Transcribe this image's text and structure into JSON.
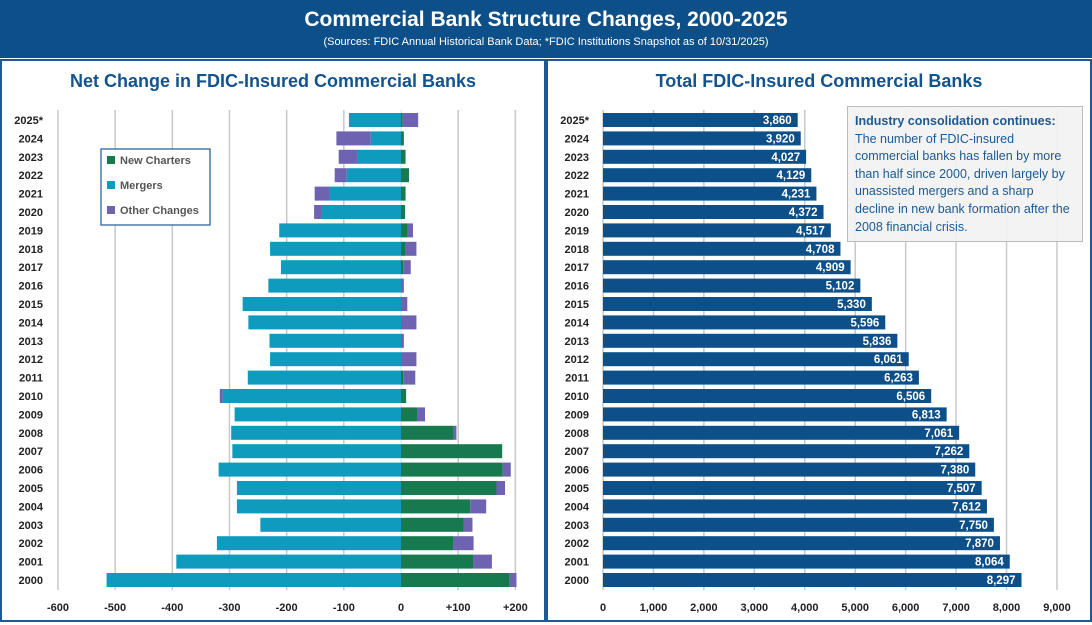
{
  "header": {
    "title": "Commercial Bank Structure Changes, 2000-2025",
    "subtitle": "(Sources: FDIC Annual Historical Bank Data; *FDIC Institutions Snapshot as of 10/31/2025)"
  },
  "annotation": {
    "heading": "Industry consolidation continues:",
    "body": "The number of FDIC-insured commercial banks has fallen by more than half since 2000, driven largely by unassisted mergers and a sharp decline in new bank formation after the 2008 financial crisis."
  },
  "chart_data": [
    {
      "type": "bar",
      "orientation": "horizontal",
      "stacked": true,
      "title": "Net Change in FDIC-Insured Commercial Banks",
      "categories": [
        "2025*",
        "2024",
        "2023",
        "2022",
        "2021",
        "2020",
        "2019",
        "2018",
        "2017",
        "2016",
        "2015",
        "2014",
        "2013",
        "2012",
        "2011",
        "2010",
        "2009",
        "2008",
        "2007",
        "2006",
        "2005",
        "2004",
        "2003",
        "2002",
        "2001",
        "2000"
      ],
      "xlim": [
        -600,
        200
      ],
      "xticks": [
        "-600",
        "-500",
        "-400",
        "-300",
        "-200",
        "-100",
        "0",
        "+100",
        "+200"
      ],
      "grid": true,
      "legend": "upper-left",
      "series": [
        {
          "name": "New Charters",
          "color": "#177a4e",
          "values": [
            3,
            5,
            8,
            14,
            8,
            7,
            12,
            7,
            4,
            0,
            0,
            0,
            0,
            0,
            4,
            9,
            28,
            92,
            177,
            178,
            167,
            121,
            110,
            91,
            126,
            190
          ]
        },
        {
          "name": "Mergers",
          "color": "#0e9bbd",
          "values": [
            -91,
            -53,
            -76,
            -95,
            -125,
            -139,
            -213,
            -229,
            -210,
            -232,
            -277,
            -267,
            -230,
            -229,
            -268,
            -312,
            -291,
            -297,
            -295,
            -319,
            -287,
            -287,
            -246,
            -322,
            -393,
            -515
          ]
        },
        {
          "name": "Other Changes",
          "color": "#6e63b0",
          "values": [
            27,
            -60,
            -33,
            -21,
            -26,
            -13,
            9,
            20,
            13,
            5,
            11,
            27,
            5,
            27,
            21,
            -5,
            14,
            5,
            0,
            14,
            15,
            28,
            15,
            36,
            33,
            12
          ]
        }
      ]
    },
    {
      "type": "bar",
      "orientation": "horizontal",
      "title": "Total FDIC-Insured Commercial Banks",
      "categories": [
        "2025*",
        "2024",
        "2023",
        "2022",
        "2021",
        "2020",
        "2019",
        "2018",
        "2017",
        "2016",
        "2015",
        "2014",
        "2013",
        "2012",
        "2011",
        "2010",
        "2009",
        "2008",
        "2007",
        "2006",
        "2005",
        "2004",
        "2003",
        "2002",
        "2001",
        "2000"
      ],
      "values": [
        3860,
        3920,
        4027,
        4129,
        4231,
        4372,
        4517,
        4708,
        4909,
        5102,
        5330,
        5596,
        5836,
        6061,
        6263,
        6506,
        6813,
        7061,
        7262,
        7380,
        7507,
        7612,
        7750,
        7870,
        8064,
        8297
      ],
      "labels": [
        "3,860",
        "3,920",
        "4,027",
        "4,129",
        "4,231",
        "4,372",
        "4,517",
        "4,708",
        "4,909",
        "5,102",
        "5,330",
        "5,596",
        "5,836",
        "6,061",
        "6,263",
        "6,506",
        "6,813",
        "7,061",
        "7,262",
        "7,380",
        "7,507",
        "7,612",
        "7,750",
        "7,870",
        "8,064",
        "8,297"
      ],
      "xlim": [
        0,
        9000
      ],
      "xticks": [
        "0",
        "1,000",
        "2,000",
        "3,000",
        "4,000",
        "5,000",
        "6,000",
        "7,000",
        "8,000",
        "9,000"
      ],
      "grid": true,
      "color": "#0d4f88"
    }
  ]
}
